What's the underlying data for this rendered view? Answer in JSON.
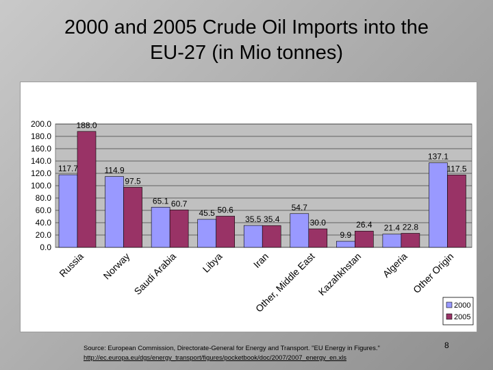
{
  "slide": {
    "title": "2000 and 2005 Crude Oil Imports into the\nEU-27 (in Mio tonnes)",
    "source": "Source: European Commission, Directorate-General for Energy and Transport. \"EU Energy in Figures.\"",
    "source_url": "http://ec.europa.eu/dgs/energy_transport/figures/pocketbook/doc/2007/2007_energy_en.xls",
    "page_number": "8"
  },
  "chart_data": {
    "type": "bar",
    "title": "",
    "xlabel": "",
    "ylabel": "",
    "categories": [
      "Russia",
      "Norway",
      "Saudi Arabia",
      "Libya",
      "Iran",
      "Other, Middle East",
      "Kazahkhstan",
      "Algeria",
      "Other Origin"
    ],
    "series": [
      {
        "name": "2000",
        "color": "#9999ff",
        "values": [
          117.7,
          114.9,
          65.1,
          45.5,
          35.5,
          54.7,
          9.9,
          21.4,
          137.1
        ]
      },
      {
        "name": "2005",
        "color": "#993366",
        "values": [
          188.0,
          97.5,
          60.7,
          50.6,
          35.4,
          30.0,
          26.4,
          22.8,
          117.5
        ]
      }
    ],
    "ylim": [
      0,
      200
    ],
    "yticks": [
      "0.0",
      "20.0",
      "40.0",
      "60.0",
      "80.0",
      "100.0",
      "120.0",
      "140.0",
      "160.0",
      "180.0",
      "200.0"
    ],
    "grid": true,
    "plot_background": "#c0c0c0",
    "legend_position": "right-bottom"
  }
}
